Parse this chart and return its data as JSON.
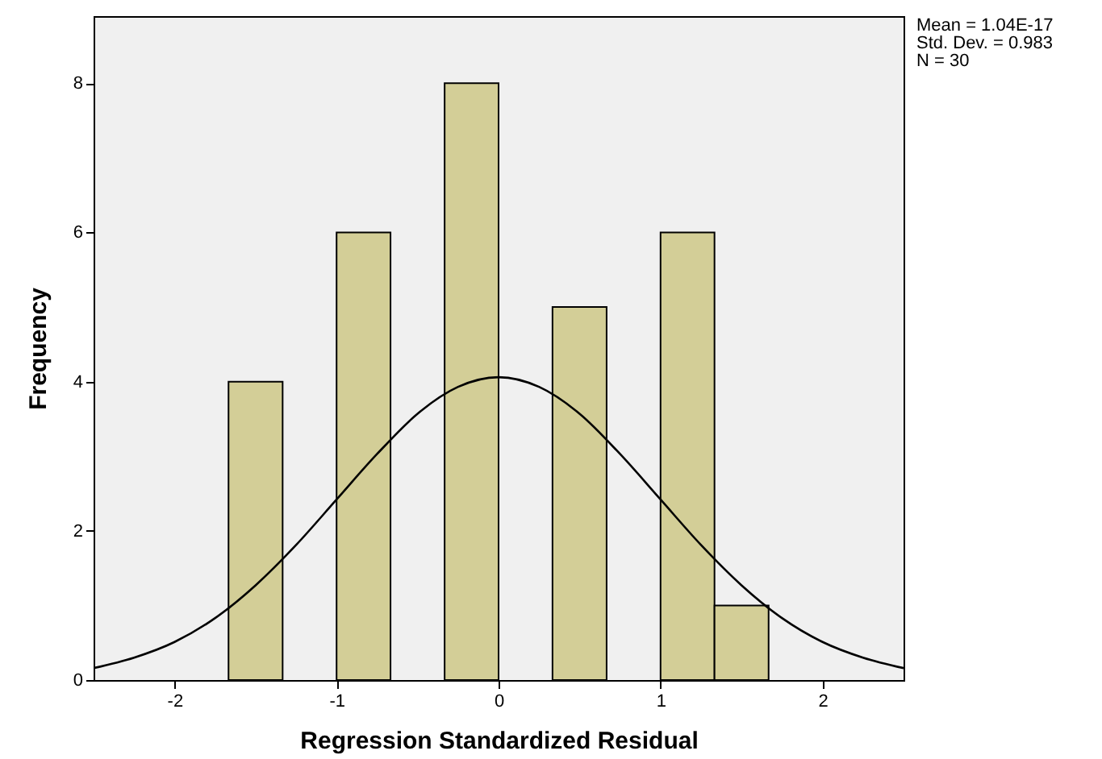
{
  "chart_data": {
    "type": "histogram",
    "xlabel": "Regression Standardized Residual",
    "ylabel": "Frequency",
    "bins": [
      -1.667,
      -1.333,
      -1.0,
      -0.667,
      -0.333,
      0,
      0.333,
      0.667,
      1.0,
      1.333,
      1.667
    ],
    "series": [
      {
        "color": "#d3ce97",
        "values": [
          4,
          0,
          6,
          0,
          8,
          0,
          5,
          0,
          6,
          1
        ]
      },
      {
        "type": "line",
        "color": "#000000",
        "x": [
          -2.5,
          -2.25,
          -2,
          -1.75,
          -1.5,
          -1.25,
          -1,
          -0.75,
          -0.5,
          -0.25,
          0,
          0.25,
          0.5,
          0.75,
          1,
          1.25,
          1.5,
          1.75,
          2,
          2.25,
          2.5
        ],
        "values": [
          0.16,
          0.3,
          0.51,
          0.83,
          1.27,
          1.81,
          2.42,
          3.03,
          3.57,
          3.93,
          4.06,
          3.93,
          3.57,
          3.03,
          2.42,
          1.81,
          1.27,
          0.83,
          0.51,
          0.3,
          0.16
        ]
      }
    ],
    "xlim": [
      -2.5,
      2.5
    ],
    "xticks": [
      -2,
      -1,
      0,
      1,
      2
    ],
    "ylim": [
      0,
      8.9
    ],
    "yticks": [
      0,
      2,
      4,
      6,
      8
    ],
    "annotations": [
      "Mean = 1.04E-17",
      "Std. Dev. = 0.983",
      "N = 30"
    ]
  }
}
